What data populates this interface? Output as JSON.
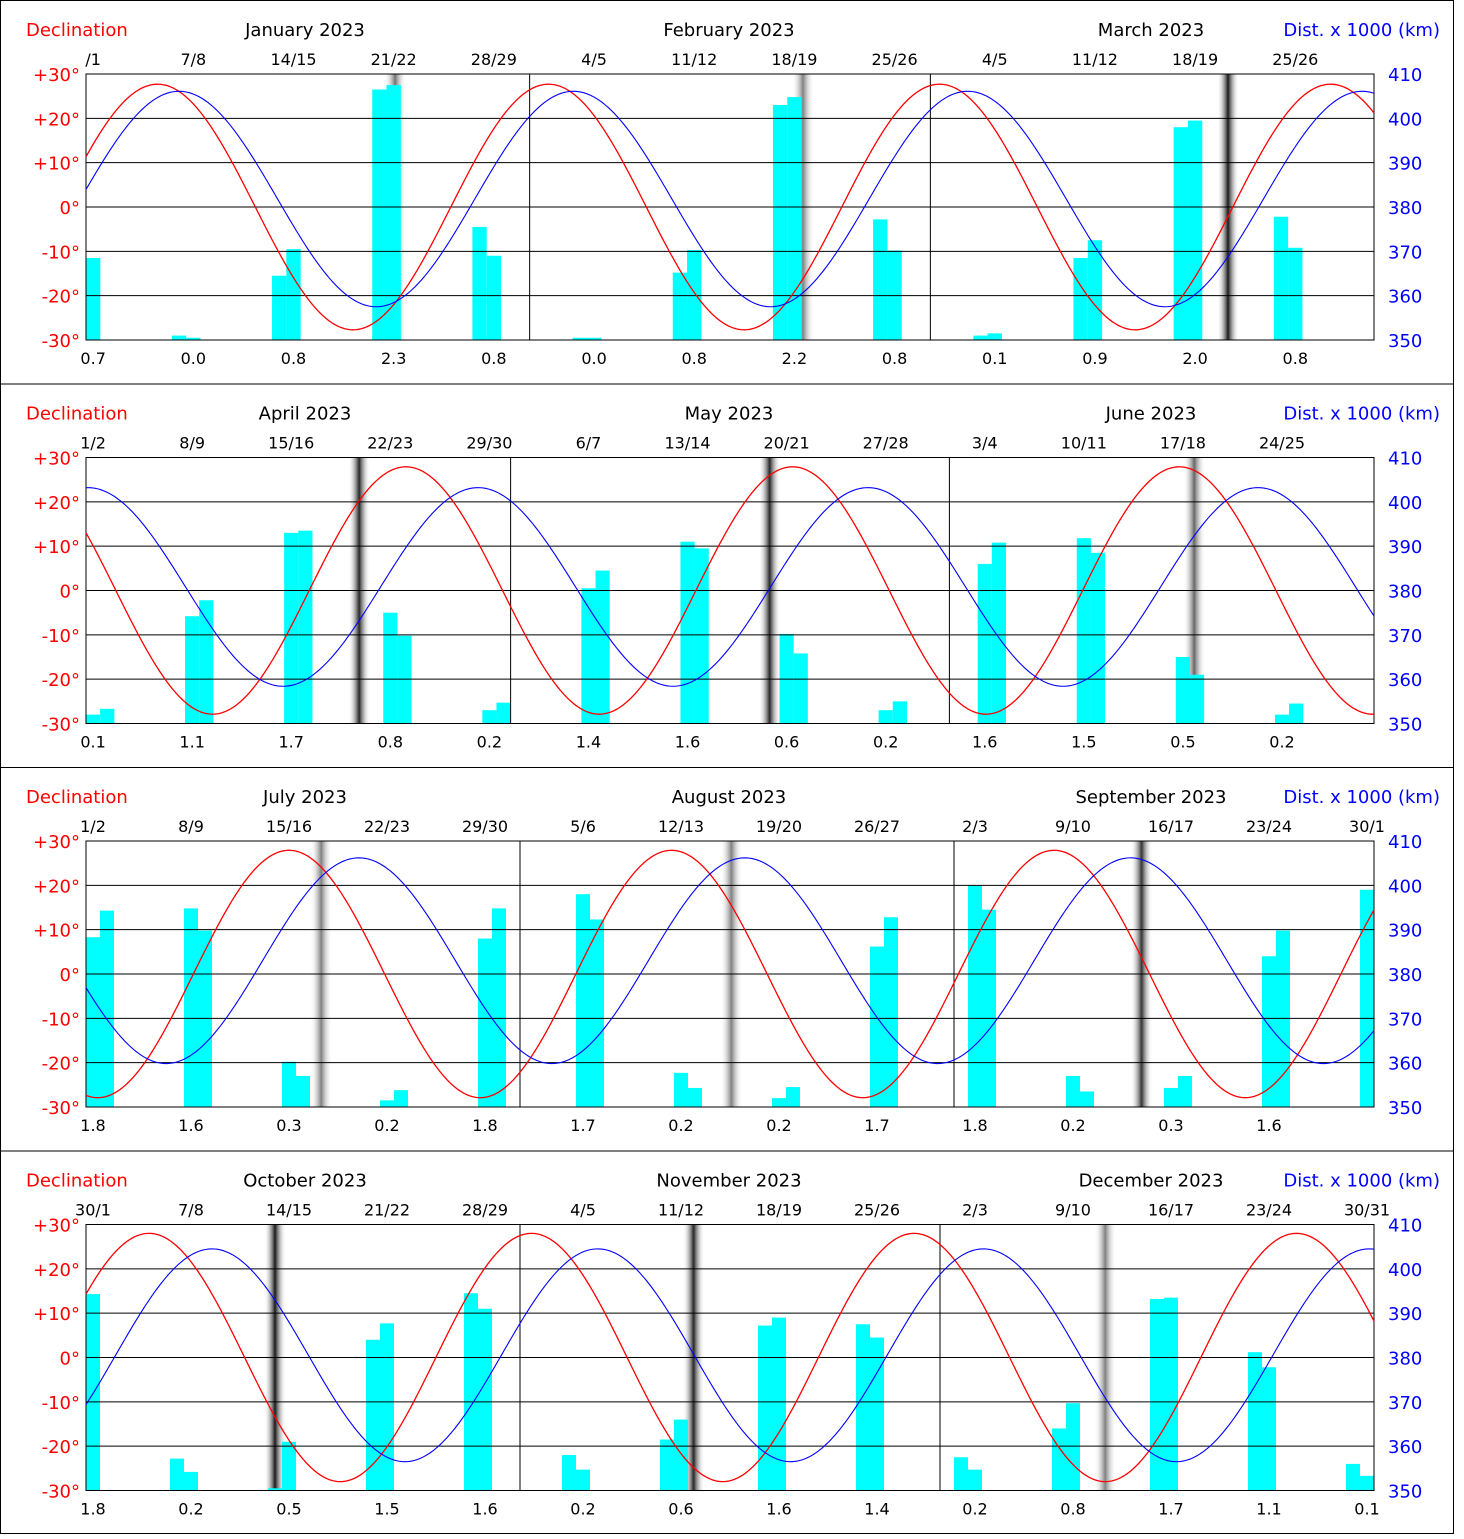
{
  "axis_titles": {
    "left": "Declination",
    "right": "Dist. x 1000 (km)"
  },
  "left_ticks": [
    "+30°",
    "+20°",
    "+10°",
    "0°",
    "-10°",
    "-20°",
    "-30°"
  ],
  "right_ticks": [
    "410",
    "400",
    "390",
    "380",
    "370",
    "360",
    "350"
  ],
  "colors": {
    "declination": "#ff0000",
    "distance": "#0000ff",
    "bars": "#00ffff",
    "axis_text_left": "#ff0000",
    "axis_text_right": "#0000ff",
    "grid": "#000000",
    "moon_shade": "#333333"
  },
  "chart_data": [
    {
      "type": "combo",
      "months": [
        "January 2023",
        "February 2023",
        "March 2023"
      ],
      "month_starts": [
        0,
        31,
        59
      ],
      "days": 90,
      "top_labels": [
        {
          "d": 0,
          "t": "/1"
        },
        {
          "d": 7,
          "t": "7/8"
        },
        {
          "d": 14,
          "t": "14/15"
        },
        {
          "d": 21,
          "t": "21/22"
        },
        {
          "d": 28,
          "t": "28/29"
        },
        {
          "d": 35,
          "t": "4/5"
        },
        {
          "d": 42,
          "t": "11/12"
        },
        {
          "d": 49,
          "t": "18/19"
        },
        {
          "d": 56,
          "t": "25/26"
        },
        {
          "d": 63,
          "t": "4/5"
        },
        {
          "d": 70,
          "t": "11/12"
        },
        {
          "d": 77,
          "t": "18/19"
        },
        {
          "d": 84,
          "t": "25/26"
        }
      ],
      "bottom_labels": [
        {
          "d": 0,
          "t": "0.7"
        },
        {
          "d": 7,
          "t": "0.0"
        },
        {
          "d": 14,
          "t": "0.8"
        },
        {
          "d": 21,
          "t": "2.3"
        },
        {
          "d": 28,
          "t": "0.8"
        },
        {
          "d": 35,
          "t": "0.0"
        },
        {
          "d": 42,
          "t": "0.8"
        },
        {
          "d": 49,
          "t": "2.2"
        },
        {
          "d": 56,
          "t": "0.8"
        },
        {
          "d": 63,
          "t": "0.1"
        },
        {
          "d": 70,
          "t": "0.9"
        },
        {
          "d": 77,
          "t": "2.0"
        },
        {
          "d": 84,
          "t": "0.8"
        }
      ],
      "bars": [
        {
          "d": 0,
          "v": [
            -11.5
          ]
        },
        {
          "d": 6,
          "v": [
            -29,
            -29.5
          ]
        },
        {
          "d": 13,
          "v": [
            -15.5,
            -9.5
          ]
        },
        {
          "d": 20,
          "v": [
            26.5,
            27.5
          ]
        },
        {
          "d": 27,
          "v": [
            -4.5,
            -11
          ]
        },
        {
          "d": 34,
          "v": [
            -29.5,
            -29.5
          ]
        },
        {
          "d": 41,
          "v": [
            -14.8,
            -9.7
          ]
        },
        {
          "d": 48,
          "v": [
            23,
            24.8
          ]
        },
        {
          "d": 55,
          "v": [
            -2.8,
            -9.8
          ]
        },
        {
          "d": 62,
          "v": [
            -29,
            -28.5
          ]
        },
        {
          "d": 69,
          "v": [
            -11.5,
            -7.5
          ]
        },
        {
          "d": 76,
          "v": [
            18,
            19.5
          ]
        },
        {
          "d": 83,
          "v": [
            -2.2,
            -9.2
          ]
        }
      ],
      "moon_shades": [
        {
          "d": 21.6,
          "dark": 0.55
        },
        {
          "d": 50.1,
          "dark": 0.5
        },
        {
          "d": 79.8,
          "dark": 0.9
        }
      ],
      "declination": {
        "amp": 27.7,
        "period": 27.3216,
        "first_max_day": 5.0
      },
      "distance": {
        "mean": 381.8,
        "amp": 24.3,
        "first_max_day": 6.5,
        "period": 27.5545
      }
    },
    {
      "type": "combo",
      "months": [
        "April 2023",
        "May 2023",
        "June 2023"
      ],
      "month_starts": [
        0,
        30,
        61
      ],
      "days": 91,
      "top_labels": [
        {
          "d": 0,
          "t": "1/2"
        },
        {
          "d": 7,
          "t": "8/9"
        },
        {
          "d": 14,
          "t": "15/16"
        },
        {
          "d": 21,
          "t": "22/23"
        },
        {
          "d": 28,
          "t": "29/30"
        },
        {
          "d": 35,
          "t": "6/7"
        },
        {
          "d": 42,
          "t": "13/14"
        },
        {
          "d": 49,
          "t": "20/21"
        },
        {
          "d": 56,
          "t": "27/28"
        },
        {
          "d": 63,
          "t": "3/4"
        },
        {
          "d": 70,
          "t": "10/11"
        },
        {
          "d": 77,
          "t": "17/18"
        },
        {
          "d": 84,
          "t": "24/25"
        }
      ],
      "bottom_labels": [
        {
          "d": 0,
          "t": "0.1"
        },
        {
          "d": 7,
          "t": "1.1"
        },
        {
          "d": 14,
          "t": "1.7"
        },
        {
          "d": 21,
          "t": "0.8"
        },
        {
          "d": 28,
          "t": "0.2"
        },
        {
          "d": 35,
          "t": "1.4"
        },
        {
          "d": 42,
          "t": "1.6"
        },
        {
          "d": 49,
          "t": "0.6"
        },
        {
          "d": 56,
          "t": "0.2"
        },
        {
          "d": 63,
          "t": "1.6"
        },
        {
          "d": 70,
          "t": "1.5"
        },
        {
          "d": 77,
          "t": "0.5"
        },
        {
          "d": 84,
          "t": "0.2"
        }
      ],
      "bars": [
        {
          "d": 0,
          "v": [
            -28,
            -26.7
          ]
        },
        {
          "d": 7,
          "v": [
            -5.8,
            -2.2
          ]
        },
        {
          "d": 14,
          "v": [
            13,
            13.5
          ]
        },
        {
          "d": 21,
          "v": [
            -5,
            -10.2
          ]
        },
        {
          "d": 28,
          "v": [
            -27,
            -25.3
          ]
        },
        {
          "d": 35,
          "v": [
            0.5,
            4.5
          ]
        },
        {
          "d": 42,
          "v": [
            11,
            9.5
          ]
        },
        {
          "d": 49,
          "v": [
            -9.8,
            -14.2
          ]
        },
        {
          "d": 56,
          "v": [
            -27,
            -25
          ]
        },
        {
          "d": 63,
          "v": [
            6,
            10.8
          ]
        },
        {
          "d": 70,
          "v": [
            11.8,
            8.5
          ]
        },
        {
          "d": 77,
          "v": [
            -15,
            -19
          ]
        },
        {
          "d": 84,
          "v": [
            -28,
            -25.5
          ]
        }
      ],
      "moon_shades": [
        {
          "d": 19.3,
          "dark": 0.85
        },
        {
          "d": 48.3,
          "dark": 0.85
        },
        {
          "d": 78.3,
          "dark": 0.6
        }
      ],
      "declination": {
        "amp": 27.9,
        "period": 27.3216,
        "first_max_day": 22.6
      },
      "distance": {
        "mean": 380.8,
        "amp": 22.4,
        "first_max_day": 27.7,
        "period": 27.5545
      }
    },
    {
      "type": "combo",
      "months": [
        "July 2023",
        "August 2023",
        "September 2023"
      ],
      "month_starts": [
        0,
        31,
        62
      ],
      "days": 92,
      "top_labels": [
        {
          "d": 0,
          "t": "1/2"
        },
        {
          "d": 7,
          "t": "8/9"
        },
        {
          "d": 14,
          "t": "15/16"
        },
        {
          "d": 21,
          "t": "22/23"
        },
        {
          "d": 28,
          "t": "29/30"
        },
        {
          "d": 35,
          "t": "5/6"
        },
        {
          "d": 42,
          "t": "12/13"
        },
        {
          "d": 49,
          "t": "19/20"
        },
        {
          "d": 56,
          "t": "26/27"
        },
        {
          "d": 63,
          "t": "2/3"
        },
        {
          "d": 70,
          "t": "9/10"
        },
        {
          "d": 77,
          "t": "16/17"
        },
        {
          "d": 84,
          "t": "23/24"
        },
        {
          "d": 91,
          "t": "30/1"
        }
      ],
      "bottom_labels": [
        {
          "d": 0,
          "t": "1.8"
        },
        {
          "d": 7,
          "t": "1.6"
        },
        {
          "d": 14,
          "t": "0.3"
        },
        {
          "d": 21,
          "t": "0.2"
        },
        {
          "d": 28,
          "t": "1.8"
        },
        {
          "d": 35,
          "t": "1.7"
        },
        {
          "d": 42,
          "t": "0.2"
        },
        {
          "d": 49,
          "t": "0.2"
        },
        {
          "d": 56,
          "t": "1.7"
        },
        {
          "d": 63,
          "t": "1.8"
        },
        {
          "d": 70,
          "t": "0.2"
        },
        {
          "d": 77,
          "t": "0.3"
        },
        {
          "d": 84,
          "t": "1.6"
        }
      ],
      "bars": [
        {
          "d": 0,
          "v": [
            8.3,
            14.3
          ]
        },
        {
          "d": 7,
          "v": [
            14.8,
            9.8
          ]
        },
        {
          "d": 14,
          "v": [
            -19.8,
            -23
          ]
        },
        {
          "d": 21,
          "v": [
            -28.5,
            -26.2
          ]
        },
        {
          "d": 28,
          "v": [
            8,
            14.8
          ]
        },
        {
          "d": 35,
          "v": [
            18,
            12.3
          ]
        },
        {
          "d": 42,
          "v": [
            -22.3,
            -25.7
          ]
        },
        {
          "d": 49,
          "v": [
            -28,
            -25.5
          ]
        },
        {
          "d": 56,
          "v": [
            6.2,
            12.8
          ]
        },
        {
          "d": 63,
          "v": [
            20,
            14.5
          ]
        },
        {
          "d": 70,
          "v": [
            -23,
            -26.5
          ]
        },
        {
          "d": 77,
          "v": [
            -25.7,
            -23
          ]
        },
        {
          "d": 84,
          "v": [
            4,
            9.8
          ]
        },
        {
          "d": 91,
          "v": [
            19
          ]
        }
      ],
      "moon_shades": [
        {
          "d": 16.8,
          "dark": 0.5
        },
        {
          "d": 46.1,
          "dark": 0.5
        },
        {
          "d": 75.4,
          "dark": 0.8
        }
      ],
      "declination": {
        "amp": 27.9,
        "period": 27.3216,
        "first_max_day": 14.5
      },
      "distance": {
        "mean": 383.0,
        "amp": 23.2,
        "first_max_day": 19.5,
        "period": 27.5545
      }
    },
    {
      "type": "combo",
      "months": [
        "October 2023",
        "November 2023",
        "December 2023"
      ],
      "month_starts": [
        0,
        31,
        61
      ],
      "days": 92,
      "top_labels": [
        {
          "d": 0,
          "t": "30/1"
        },
        {
          "d": 7,
          "t": "7/8"
        },
        {
          "d": 14,
          "t": "14/15"
        },
        {
          "d": 21,
          "t": "21/22"
        },
        {
          "d": 28,
          "t": "28/29"
        },
        {
          "d": 35,
          "t": "4/5"
        },
        {
          "d": 42,
          "t": "11/12"
        },
        {
          "d": 49,
          "t": "18/19"
        },
        {
          "d": 56,
          "t": "25/26"
        },
        {
          "d": 63,
          "t": "2/3"
        },
        {
          "d": 70,
          "t": "9/10"
        },
        {
          "d": 77,
          "t": "16/17"
        },
        {
          "d": 84,
          "t": "23/24"
        },
        {
          "d": 91,
          "t": "30/31"
        }
      ],
      "bottom_labels": [
        {
          "d": 0,
          "t": "1.8"
        },
        {
          "d": 7,
          "t": "0.2"
        },
        {
          "d": 14,
          "t": "0.5"
        },
        {
          "d": 21,
          "t": "1.5"
        },
        {
          "d": 28,
          "t": "1.6"
        },
        {
          "d": 35,
          "t": "0.2"
        },
        {
          "d": 42,
          "t": "0.6"
        },
        {
          "d": 49,
          "t": "1.6"
        },
        {
          "d": 56,
          "t": "1.4"
        },
        {
          "d": 63,
          "t": "0.2"
        },
        {
          "d": 70,
          "t": "0.8"
        },
        {
          "d": 77,
          "t": "1.7"
        },
        {
          "d": 84,
          "t": "1.1"
        },
        {
          "d": 91,
          "t": "0.1"
        }
      ],
      "bars": [
        {
          "d": 0,
          "v": [
            14.3
          ]
        },
        {
          "d": 6,
          "v": [
            -22.8,
            -25.8
          ]
        },
        {
          "d": 13,
          "v": [
            -29.5,
            -19
          ]
        },
        {
          "d": 20,
          "v": [
            4,
            7.7
          ]
        },
        {
          "d": 27,
          "v": [
            14.5,
            11
          ]
        },
        {
          "d": 34,
          "v": [
            -22,
            -25.3
          ]
        },
        {
          "d": 41,
          "v": [
            -18.5,
            -14
          ]
        },
        {
          "d": 48,
          "v": [
            7.2,
            9
          ]
        },
        {
          "d": 55,
          "v": [
            7.5,
            4.5
          ]
        },
        {
          "d": 62,
          "v": [
            -22.5,
            -25.3
          ]
        },
        {
          "d": 69,
          "v": [
            -16,
            -10.3
          ]
        },
        {
          "d": 76,
          "v": [
            13.2,
            13.5
          ]
        },
        {
          "d": 83,
          "v": [
            1.2,
            -2.2
          ]
        },
        {
          "d": 90,
          "v": [
            -24,
            -26.7
          ]
        }
      ],
      "moon_shades": [
        {
          "d": 13.5,
          "dark": 0.9
        },
        {
          "d": 43.4,
          "dark": 0.85
        },
        {
          "d": 72.8,
          "dark": 0.5
        }
      ],
      "declination": {
        "amp": 28.0,
        "period": 27.3216,
        "first_max_day": 4.5
      },
      "distance": {
        "mean": 380.5,
        "amp": 24.0,
        "first_max_day": 9.0,
        "period": 27.5545
      }
    }
  ]
}
